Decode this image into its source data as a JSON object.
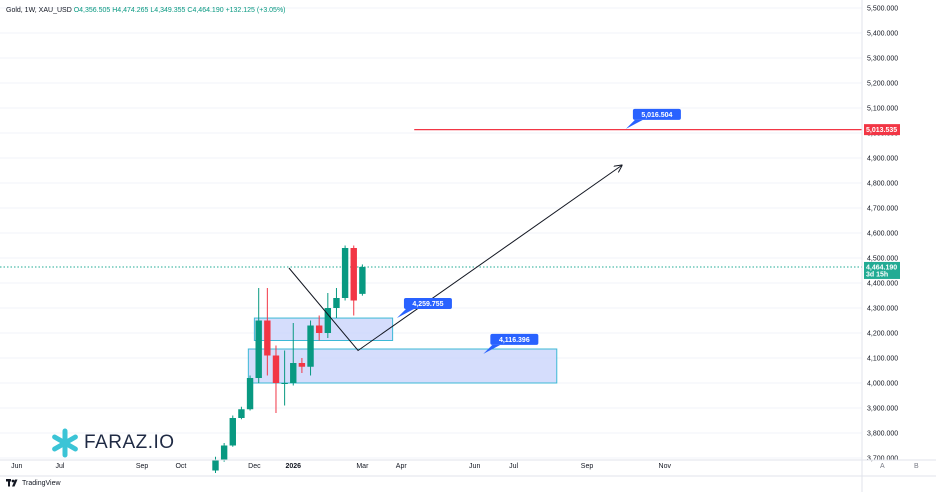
{
  "legend": {
    "symbol": "Gold, 1W, XAU_USD",
    "open": "O4,356.505",
    "high": "H4,474.265",
    "low": "L4,349.355",
    "close": "C4,464.190",
    "change": "+132.125 (+3.05%)"
  },
  "brand": {
    "name": "FARAZ.IO"
  },
  "footer": {
    "tv_label": "TradingView"
  },
  "corner": {
    "a": "A",
    "b": "B"
  },
  "price_tag": {
    "price": "4,464.190",
    "countdown": "3d 15h"
  },
  "target_tag": "5,013.535",
  "callouts": [
    "5,016.504",
    "4,259.755",
    "4,116.396"
  ],
  "colors": {
    "up": "#089981",
    "down": "#f23645",
    "zone_fill": "#c7d2fb",
    "zone_border": "#3cb9d6",
    "callout": "#2962ff",
    "target": "#f23645",
    "last_price": "#22ab94"
  },
  "chart_data": {
    "type": "candlestick",
    "title": "Gold, 1W, XAU_USD",
    "xlabel": "",
    "ylabel": "",
    "ylim": [
      3700,
      5500
    ],
    "y_ticks": [
      "3,700.000",
      "3,800.000",
      "3,900.000",
      "4,000.000",
      "4,100.000",
      "4,200.000",
      "4,300.000",
      "4,400.000",
      "4,500.000",
      "4,600.000",
      "4,700.000",
      "4,800.000",
      "4,900.000",
      "5,000.000",
      "5,100.000",
      "5,200.000",
      "5,300.000",
      "5,400.000",
      "5,500.000"
    ],
    "x_ticks": [
      {
        "label": "Jun",
        "w": -23
      },
      {
        "label": "Jul",
        "w": -18
      },
      {
        "label": "Sep",
        "w": -8.5
      },
      {
        "label": "Oct",
        "w": -4
      },
      {
        "label": "Dec",
        "w": 4.5
      },
      {
        "label": "2026",
        "w": 9
      },
      {
        "label": "Mar",
        "w": 17
      },
      {
        "label": "Apr",
        "w": 21.5
      },
      {
        "label": "Jun",
        "w": 30
      },
      {
        "label": "Jul",
        "w": 34.5
      },
      {
        "label": "Sep",
        "w": 43
      },
      {
        "label": "Nov",
        "w": 52
      }
    ],
    "candles": [
      {
        "o": 3650,
        "h": 3705,
        "l": 3640,
        "c": 3690
      },
      {
        "o": 3690,
        "h": 3760,
        "l": 3685,
        "c": 3750
      },
      {
        "o": 3750,
        "h": 3870,
        "l": 3745,
        "c": 3860
      },
      {
        "o": 3860,
        "h": 3905,
        "l": 3855,
        "c": 3895
      },
      {
        "o": 3895,
        "h": 4030,
        "l": 3890,
        "c": 4020
      },
      {
        "o": 4020,
        "h": 4380,
        "l": 4000,
        "c": 4250
      },
      {
        "o": 4250,
        "h": 4380,
        "l": 4030,
        "c": 4110
      },
      {
        "o": 4110,
        "h": 4150,
        "l": 3880,
        "c": 4000
      },
      {
        "o": 4000,
        "h": 4130,
        "l": 3910,
        "c": 4000
      },
      {
        "o": 4000,
        "h": 4240,
        "l": 3990,
        "c": 4080
      },
      {
        "o": 4080,
        "h": 4100,
        "l": 4040,
        "c": 4065
      },
      {
        "o": 4065,
        "h": 4250,
        "l": 4030,
        "c": 4230
      },
      {
        "o": 4230,
        "h": 4270,
        "l": 4170,
        "c": 4200
      },
      {
        "o": 4200,
        "h": 4360,
        "l": 4180,
        "c": 4300
      },
      {
        "o": 4300,
        "h": 4380,
        "l": 4260,
        "c": 4340
      },
      {
        "o": 4340,
        "h": 4550,
        "l": 4330,
        "c": 4540
      },
      {
        "o": 4540,
        "h": 4550,
        "l": 4270,
        "c": 4330
      },
      {
        "o": 4356.505,
        "h": 4474.265,
        "l": 4349.355,
        "c": 4464.19
      }
    ],
    "last_price": 4464.19,
    "zones": [
      {
        "w1": 4.5,
        "w2": 20.5,
        "top": 4259.755,
        "bottom": 4170
      },
      {
        "w1": 3.8,
        "w2": 39.5,
        "top": 4136,
        "bottom": 4000
      }
    ],
    "projection": [
      {
        "w": 8.5,
        "p": 4460
      },
      {
        "w": 16.5,
        "p": 4130
      },
      {
        "w": 47,
        "p": 4870
      }
    ],
    "target_line": {
      "from_w": 23,
      "to_w": 55,
      "price": 5013.535
    },
    "callout_points": [
      {
        "w": 47.5,
        "p": 5016.504
      },
      {
        "w": 21,
        "p": 4259.755
      },
      {
        "w": 31,
        "p": 4116.396
      }
    ]
  }
}
